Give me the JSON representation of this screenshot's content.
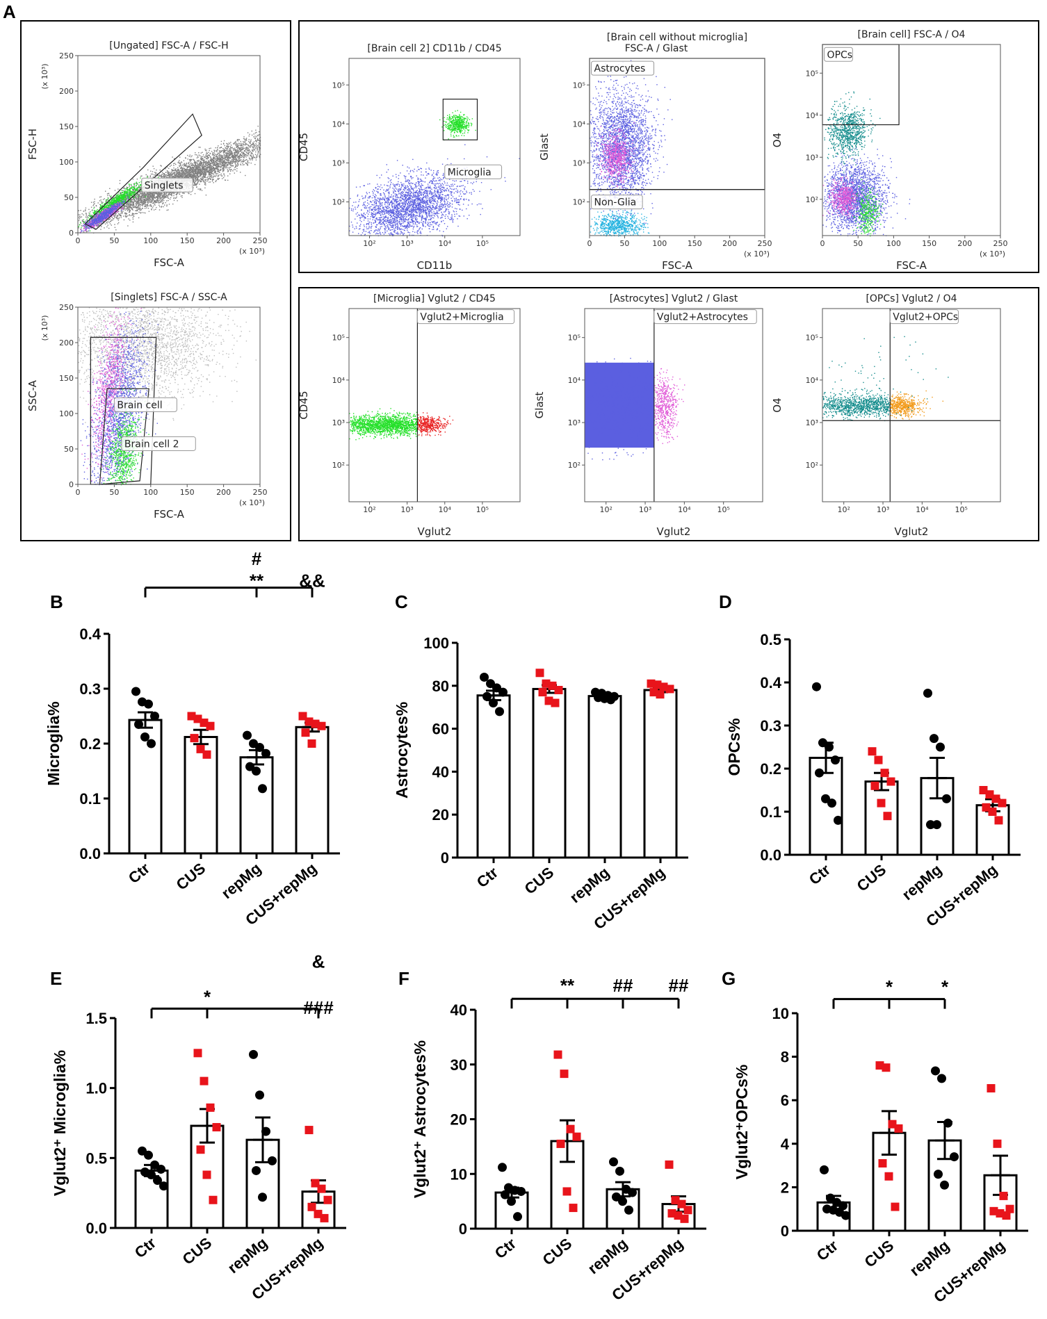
{
  "figure_label": "A",
  "colors": {
    "black_point": "#000000",
    "red_point": "#e8141b",
    "gray": "#808080",
    "light_gray": "#bdbdbd",
    "blue": "#5b5fe0",
    "pink": "#e05ad7",
    "green": "#25e02a",
    "teal": "#138c8c",
    "cyan": "#26b3e0",
    "red_pop": "#e82020",
    "orange": "#f29a1a"
  },
  "gating_plots": [
    {
      "id": "p1",
      "title": "[Ungated] FSC-A / FSC-H",
      "xlabel": "FSC-A",
      "ylabel": "FSC-H",
      "xscale": "linear",
      "yscale": "linear",
      "xticks": [
        "0",
        "50",
        "100",
        "150",
        "200",
        "250"
      ],
      "yticks": [
        "0",
        "50",
        "100",
        "150",
        "200",
        "250"
      ],
      "xmult": "(x 10³)",
      "ymult": "(x 10³)",
      "gates": [
        "Singlets"
      ]
    },
    {
      "id": "p2",
      "title": "[Singlets] FSC-A / SSC-A",
      "xlabel": "FSC-A",
      "ylabel": "SSC-A",
      "xscale": "linear",
      "yscale": "linear",
      "xticks": [
        "0",
        "50",
        "100",
        "150",
        "200",
        "250"
      ],
      "yticks": [
        "0",
        "50",
        "100",
        "150",
        "200",
        "250"
      ],
      "xmult": "(x 10³)",
      "ymult": "(x 10³)",
      "gates": [
        "Brain cell",
        "Brain cell 2"
      ]
    },
    {
      "id": "p3",
      "title": "[Brain cell 2] CD11b / CD45",
      "xlabel": "CD11b",
      "ylabel": "CD45",
      "xscale": "log",
      "yscale": "log",
      "xticks": [
        "10²",
        "10³",
        "10⁴",
        "10⁵"
      ],
      "yticks": [
        "10²",
        "10³",
        "10⁴",
        "10⁵"
      ],
      "gates": [
        "Microglia"
      ]
    },
    {
      "id": "p4",
      "title": "[Brain cell without microglia]",
      "title2": "FSC-A / Glast",
      "xlabel": "FSC-A",
      "ylabel": "Glast",
      "xscale": "linear",
      "yscale": "log",
      "xticks": [
        "0",
        "50",
        "100",
        "150",
        "200",
        "250"
      ],
      "yticks": [
        "10²",
        "10³",
        "10⁴",
        "10⁵"
      ],
      "xmult": "(x 10³)",
      "gates": [
        "Astrocytes",
        "Non-Glia"
      ]
    },
    {
      "id": "p5",
      "title": "[Brain cell] FSC-A / O4",
      "xlabel": "FSC-A",
      "ylabel": "O4",
      "xscale": "linear",
      "yscale": "log",
      "xticks": [
        "0",
        "50",
        "100",
        "150",
        "200",
        "250"
      ],
      "yticks": [
        "10²",
        "10³",
        "10⁴",
        "10⁵"
      ],
      "xmult": "(x 10³)",
      "gates": [
        "OPCs"
      ]
    },
    {
      "id": "p6",
      "title": "[Microglia] Vglut2 / CD45",
      "xlabel": "Vglut2",
      "ylabel": "CD45",
      "xscale": "log",
      "yscale": "log",
      "xticks": [
        "10²",
        "10³",
        "10⁴",
        "10⁵"
      ],
      "yticks": [
        "10²",
        "10³",
        "10⁴",
        "10⁵"
      ],
      "gates": [
        "Vglut2+Microglia"
      ]
    },
    {
      "id": "p7",
      "title": "[Astrocytes] Vglut2 / Glast",
      "xlabel": "Vglut2",
      "ylabel": "Glast",
      "xscale": "log",
      "yscale": "log",
      "xticks": [
        "10²",
        "10³",
        "10⁴",
        "10⁵"
      ],
      "yticks": [
        "10²",
        "10³",
        "10⁴",
        "10⁵"
      ],
      "gates": [
        "Vglut2+Astrocytes"
      ]
    },
    {
      "id": "p8",
      "title": "[OPCs] Vglut2 / O4",
      "xlabel": "Vglut2",
      "ylabel": "O4",
      "xscale": "log",
      "yscale": "log",
      "xticks": [
        "10²",
        "10³",
        "10⁴",
        "10⁵"
      ],
      "yticks": [
        "10²",
        "10³",
        "10⁴",
        "10⁵"
      ],
      "gates": [
        "Vglut2+OPCs"
      ]
    }
  ],
  "chart_data": [
    {
      "panel": "B",
      "type": "bar",
      "ylabel": "Microglia%",
      "ylim": [
        0,
        0.4
      ],
      "yticks": [
        "0.0",
        "0.1",
        "0.2",
        "0.3",
        "0.4"
      ],
      "categories": [
        "Ctr",
        "CUS",
        "repMg",
        "CUS+repMg"
      ],
      "means": [
        0.243,
        0.212,
        0.175,
        0.23
      ],
      "sems": [
        0.014,
        0.013,
        0.013,
        0.008
      ],
      "point_colors": [
        "black",
        "red",
        "black",
        "red"
      ],
      "points": [
        [
          0.295,
          0.276,
          0.272,
          0.25,
          0.235,
          0.212,
          0.2
        ],
        [
          0.25,
          0.245,
          0.238,
          0.232,
          0.21,
          0.19,
          0.18
        ],
        [
          0.215,
          0.2,
          0.193,
          0.182,
          0.158,
          0.15,
          0.118
        ],
        [
          0.25,
          0.24,
          0.236,
          0.232,
          0.22,
          0.2
        ]
      ],
      "significance": [
        "**",
        "#",
        "&&"
      ]
    },
    {
      "panel": "C",
      "type": "bar",
      "ylabel": "Astrocytes%",
      "ylim": [
        0,
        100
      ],
      "yticks": [
        "0",
        "20",
        "40",
        "60",
        "80",
        "100"
      ],
      "categories": [
        "Ctr",
        "CUS",
        "repMg",
        "CUS+repMg"
      ],
      "means": [
        75.5,
        78.5,
        75.2,
        78.0
      ],
      "sems": [
        2.2,
        1.8,
        0.8,
        1.0
      ],
      "point_colors": [
        "black",
        "red",
        "black",
        "red"
      ],
      "points": [
        [
          84,
          81,
          79,
          77,
          75,
          72,
          68
        ],
        [
          86,
          81,
          80,
          78,
          77,
          73,
          72
        ],
        [
          77,
          76.5,
          75.5,
          75,
          74.5,
          74,
          73.5
        ],
        [
          81,
          80.5,
          79.5,
          78.5,
          77,
          76
        ]
      ],
      "significance": []
    },
    {
      "panel": "D",
      "type": "bar",
      "ylabel": "OPCs%",
      "ylim": [
        0,
        0.5
      ],
      "yticks": [
        "0.0",
        "0.1",
        "0.2",
        "0.3",
        "0.4",
        "0.5"
      ],
      "categories": [
        "Ctr",
        "CUS",
        "repMg",
        "CUS+repMg"
      ],
      "means": [
        0.225,
        0.17,
        0.178,
        0.115
      ],
      "sems": [
        0.035,
        0.02,
        0.047,
        0.014
      ],
      "point_colors": [
        "black",
        "red",
        "black",
        "red"
      ],
      "points": [
        [
          0.39,
          0.26,
          0.25,
          0.22,
          0.19,
          0.13,
          0.12,
          0.08
        ],
        [
          0.24,
          0.22,
          0.19,
          0.17,
          0.16,
          0.12,
          0.09
        ],
        [
          0.375,
          0.27,
          0.25,
          0.13,
          0.07,
          0.07
        ],
        [
          0.15,
          0.14,
          0.13,
          0.12,
          0.11,
          0.1,
          0.08
        ]
      ],
      "significance": []
    },
    {
      "panel": "E",
      "type": "bar",
      "ylabel": "Vglut2⁺ Microglia%",
      "ylim": [
        0,
        1.5
      ],
      "yticks": [
        "0.0",
        "0.5",
        "1.0",
        "1.5"
      ],
      "categories": [
        "Ctr",
        "CUS",
        "repMg",
        "CUS+repMg"
      ],
      "means": [
        0.41,
        0.73,
        0.63,
        0.26
      ],
      "sems": [
        0.04,
        0.12,
        0.16,
        0.08
      ],
      "point_colors": [
        "black",
        "red",
        "black",
        "red"
      ],
      "points": [
        [
          0.55,
          0.52,
          0.45,
          0.42,
          0.4,
          0.38,
          0.34,
          0.3
        ],
        [
          1.25,
          1.05,
          0.86,
          0.72,
          0.56,
          0.38,
          0.2
        ],
        [
          1.24,
          0.95,
          0.69,
          0.48,
          0.41,
          0.22
        ],
        [
          0.7,
          0.32,
          0.28,
          0.2,
          0.15,
          0.1,
          0.07
        ]
      ],
      "significance": [
        "*",
        "###",
        "&"
      ]
    },
    {
      "panel": "F",
      "type": "bar",
      "ylabel": "Vglut2⁺ Astrocytes%",
      "ylim": [
        0,
        40
      ],
      "yticks": [
        "0",
        "10",
        "20",
        "30",
        "40"
      ],
      "categories": [
        "Ctr",
        "CUS",
        "repMg",
        "CUS+repMg"
      ],
      "means": [
        6.6,
        16.0,
        7.2,
        4.5
      ],
      "sems": [
        0.9,
        3.8,
        1.3,
        1.4
      ],
      "point_colors": [
        "black",
        "red",
        "black",
        "red"
      ],
      "points": [
        [
          11.2,
          7.5,
          7,
          6.8,
          6.2,
          5,
          2.2
        ],
        [
          31.8,
          28.3,
          18.2,
          16.8,
          15.5,
          6.8,
          3.8
        ],
        [
          12.2,
          10.5,
          7.2,
          6.6,
          5.8,
          5,
          3.4
        ],
        [
          11.7,
          5.2,
          4.5,
          3.4,
          2.8,
          2.4,
          1.8
        ]
      ],
      "significance": [
        "**",
        "##",
        "##"
      ]
    },
    {
      "panel": "G",
      "type": "bar",
      "ylabel": "Vglut2⁺OPCs%",
      "ylim": [
        0,
        10
      ],
      "yticks": [
        "0",
        "2",
        "4",
        "6",
        "8",
        "10"
      ],
      "categories": [
        "Ctr",
        "CUS",
        "repMg",
        "CUS+repMg"
      ],
      "means": [
        1.3,
        4.5,
        4.15,
        2.55
      ],
      "sems": [
        0.3,
        1.0,
        0.85,
        0.9
      ],
      "point_colors": [
        "black",
        "red",
        "black",
        "red"
      ],
      "points": [
        [
          2.8,
          1.5,
          1.3,
          1.15,
          1.0,
          0.95,
          0.85,
          0.7
        ],
        [
          7.6,
          7.5,
          4.9,
          4.7,
          3.1,
          2.5,
          1.1
        ],
        [
          7.35,
          7.0,
          4.95,
          3.4,
          2.6,
          2.1
        ],
        [
          6.55,
          4.0,
          1.6,
          1.0,
          0.9,
          0.8,
          0.7
        ]
      ],
      "significance": [
        "*",
        "*"
      ]
    }
  ]
}
